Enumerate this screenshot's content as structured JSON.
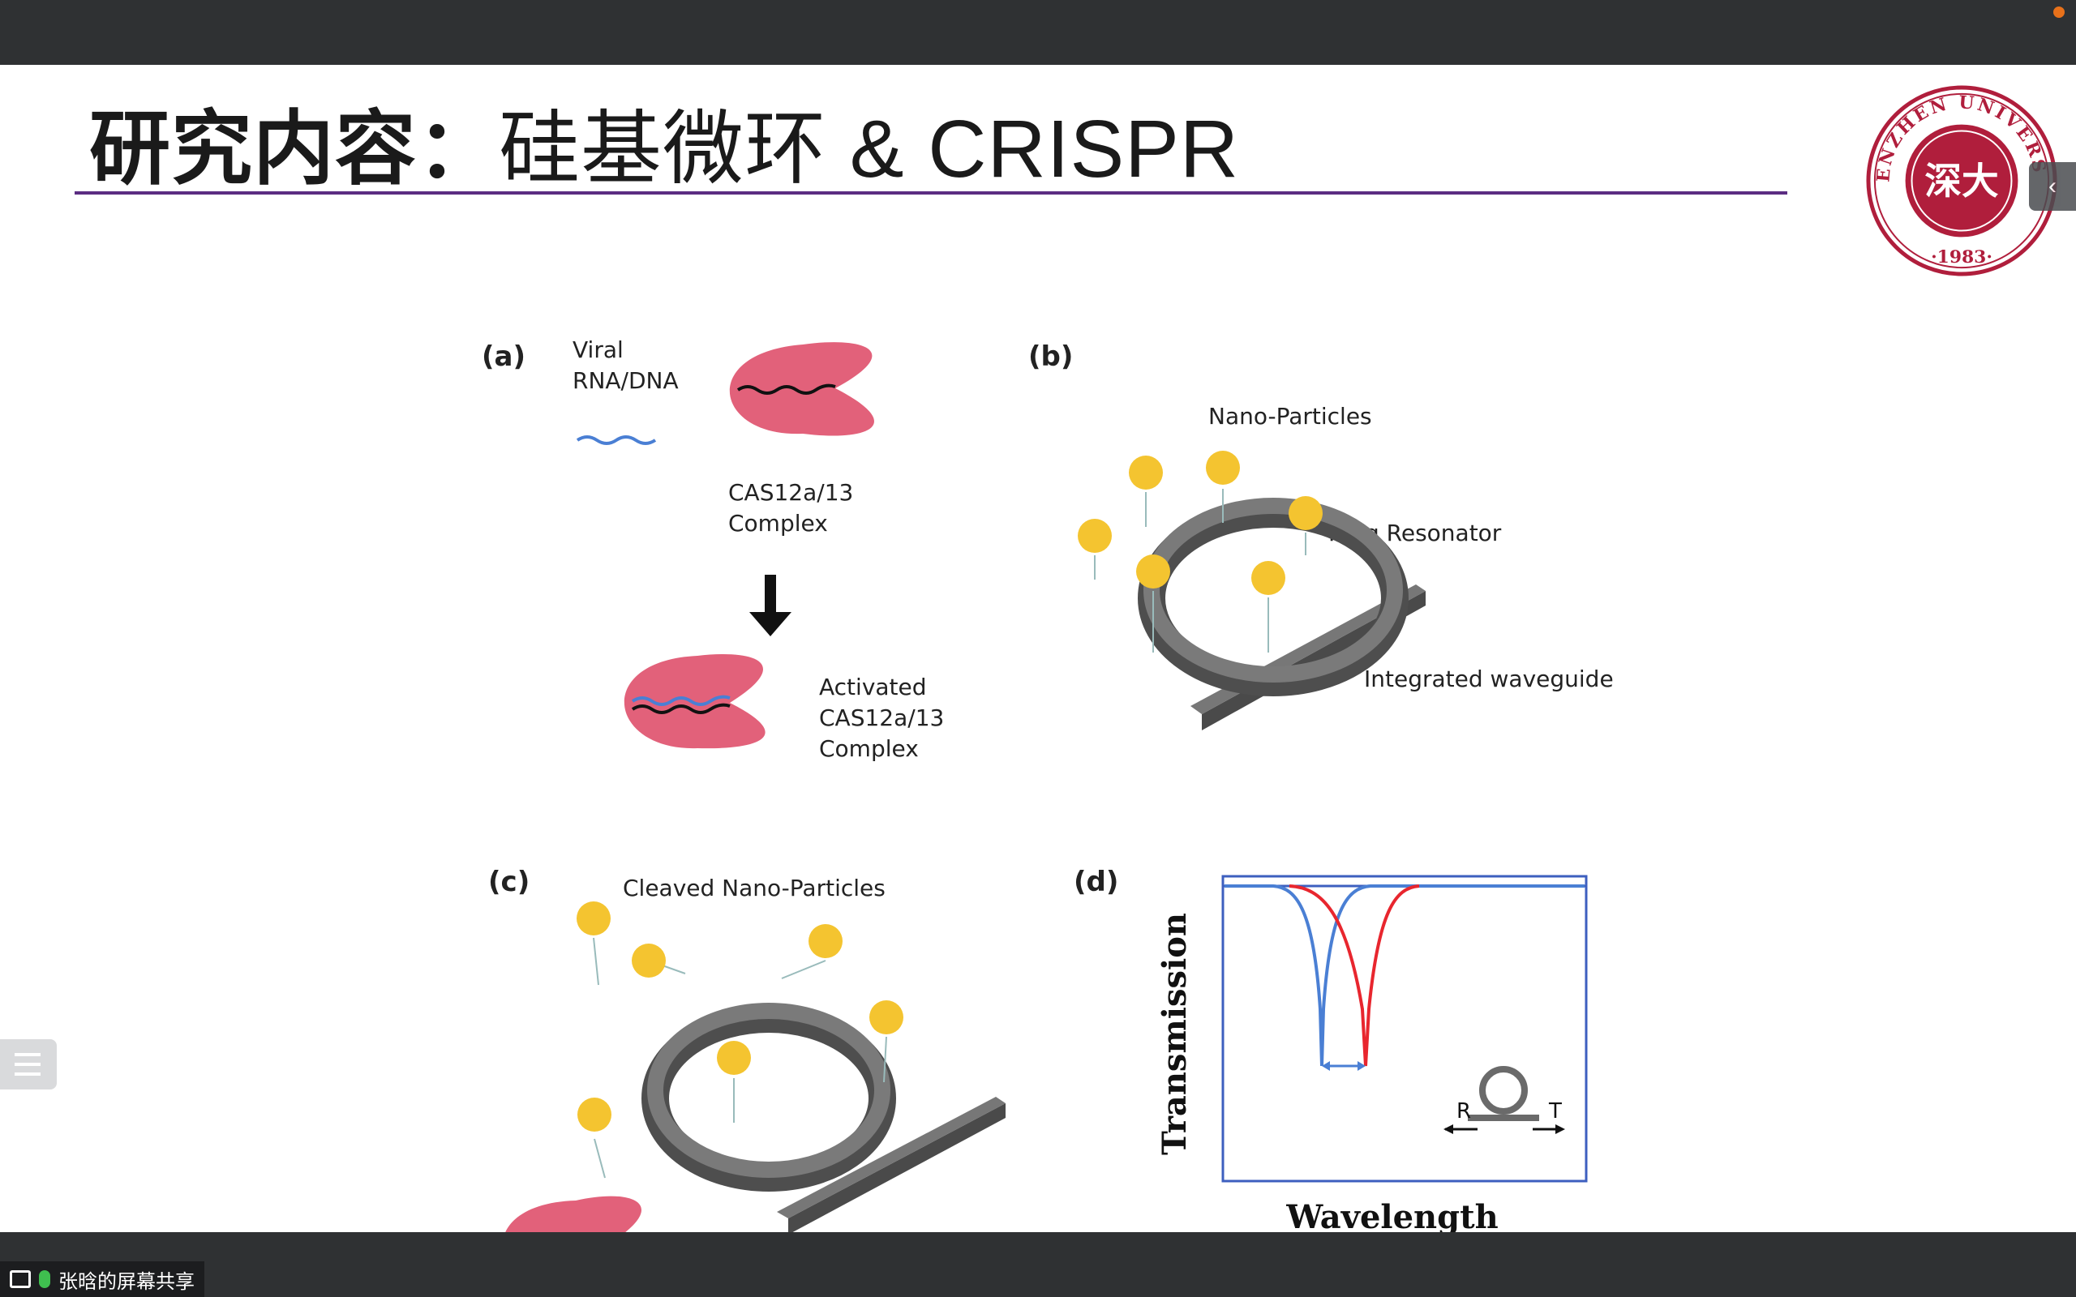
{
  "slide": {
    "title_bold": "研究内容：",
    "title_rest": "硅基微环 & CRISPR"
  },
  "logo": {
    "top_text": "SHENZHEN UNIVERSITY",
    "center_text": "深大",
    "year": "·1983·",
    "color": "#b01e3c"
  },
  "figure": {
    "panel_a": {
      "label": "(a)",
      "viral_line1": "Viral",
      "viral_line2": "RNA/DNA",
      "complex_line1": "CAS12a/13",
      "complex_line2": "Complex",
      "activated_line1": "Activated",
      "activated_line2": "CAS12a/13",
      "activated_line3": "Complex"
    },
    "panel_b": {
      "label": "(b)",
      "nano": "Nano-Particles",
      "ring": "Ring Resonator",
      "waveguide": "Integrated waveguide"
    },
    "panel_c": {
      "label": "(c)",
      "cleaved": "Cleaved Nano-Particles"
    },
    "panel_d": {
      "label": "(d)",
      "ylabel": "Transmission",
      "xlabel": "Wavelength",
      "r_label": "R",
      "t_label": "T"
    }
  },
  "colors": {
    "protein": "#e2617a",
    "particle": "#f4c430",
    "ring": "#5a5a5a",
    "blue_curve": "#4a7fd4",
    "red_curve": "#e8262e",
    "title_rule": "#5b2d82"
  },
  "status": {
    "share_label": "张晗的屏幕共享"
  },
  "icons": {
    "share": "screen-share-icon",
    "mic": "microphone-icon",
    "toc": "table-of-contents-icon",
    "collapse": "chevron-left-icon"
  }
}
